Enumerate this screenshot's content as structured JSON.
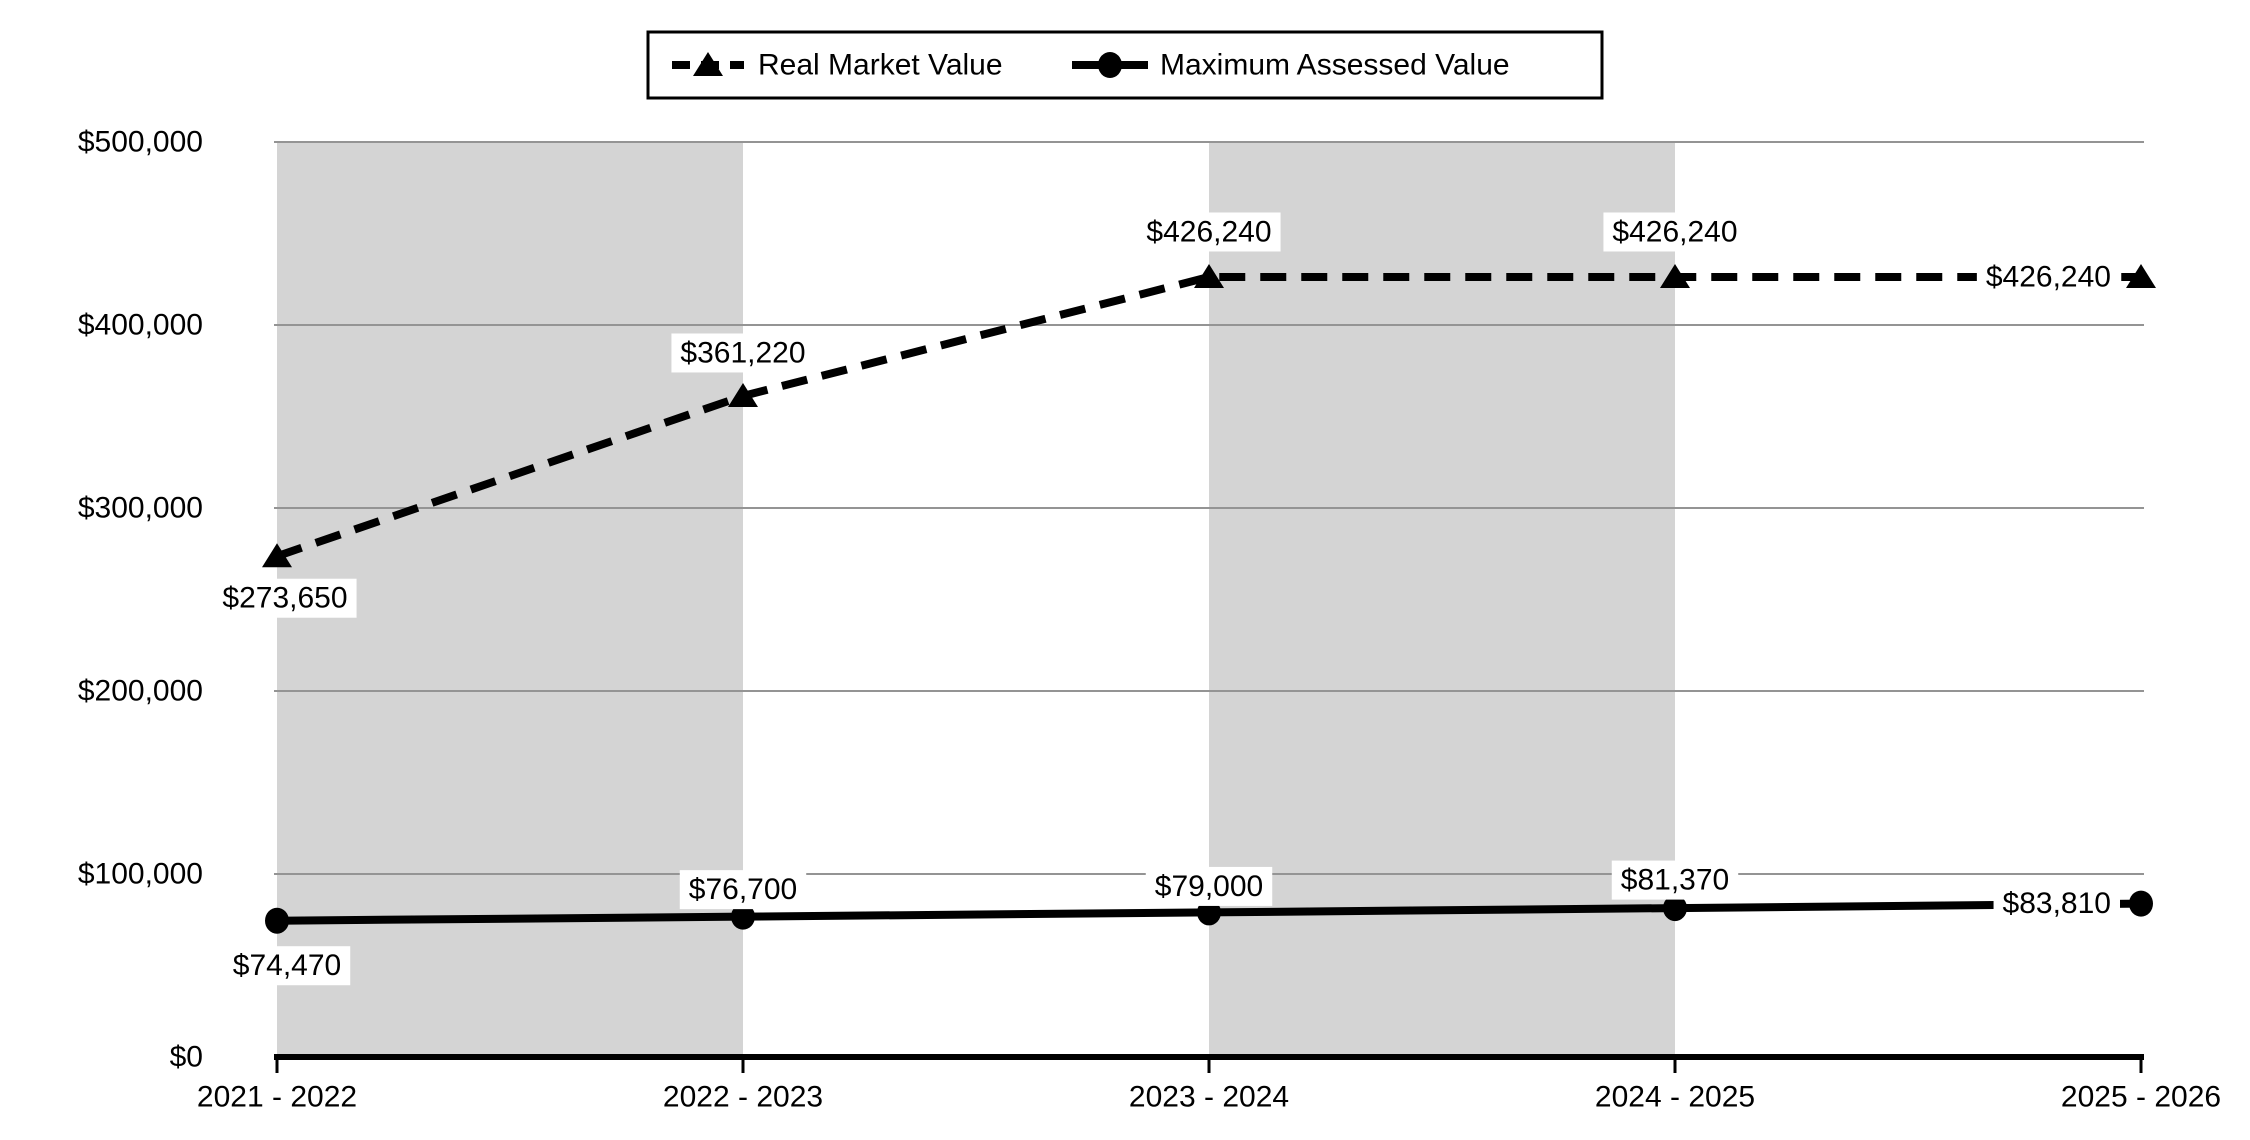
{
  "page": {
    "background_color": "#ffffff"
  },
  "legend": {
    "items": [
      {
        "label": "Real Market Value",
        "sample": "dashed-line-triangle-marker"
      },
      {
        "label": "Maximum Assessed Value",
        "sample": "solid-line-circle-marker"
      }
    ]
  },
  "chart_data": {
    "type": "line",
    "title": "",
    "xlabel": "",
    "ylabel": "",
    "categories": [
      "2021 - 2022",
      "2022 - 2023",
      "2023 - 2024",
      "2024 - 2025",
      "2025 - 2026"
    ],
    "series": [
      {
        "name": "Real Market Value",
        "values": [
          273650,
          361220,
          426240,
          426240,
          426240
        ],
        "point_labels": [
          "$273,650",
          "$361,220",
          "$426,240",
          "$426,240",
          "$426,240"
        ],
        "line_style": "dashed",
        "marker": "triangle",
        "color": "#000000"
      },
      {
        "name": "Maximum Assessed Value",
        "values": [
          74470,
          76700,
          79000,
          81370,
          83810
        ],
        "point_labels": [
          "$74,470",
          "$76,700",
          "$79,000",
          "$81,370",
          "$83,810"
        ],
        "line_style": "solid",
        "marker": "circle",
        "color": "#000000"
      }
    ],
    "y_tick_labels": [
      "$0",
      "$100,000",
      "$200,000",
      "$300,000",
      "$400,000",
      "$500,000"
    ],
    "y_tick_values": [
      0,
      100000,
      200000,
      300000,
      400000,
      500000
    ],
    "ylim": [
      0,
      500000
    ],
    "grid": "horizontal",
    "legend_position": "top-center",
    "shaded_column_intervals": [
      [
        0,
        1
      ],
      [
        2,
        3
      ]
    ],
    "colors": {
      "series": "#000000",
      "band": "#d4d4d4",
      "gridline": "#949494",
      "axis": "#000000",
      "label_background": "#ffffff",
      "text": "#000000",
      "legend_border": "#000000",
      "background": "#ffffff"
    }
  }
}
